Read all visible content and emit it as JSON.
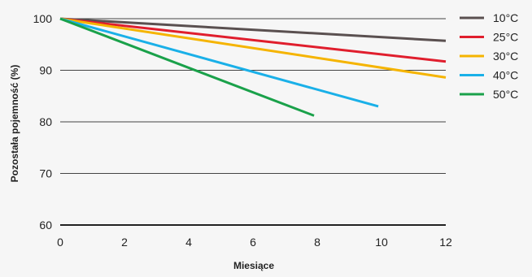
{
  "chart_data": {
    "type": "line",
    "xlabel": "Miesiące",
    "ylabel": "Pozostała pojemność (%)",
    "xlim": [
      0,
      12
    ],
    "ylim": [
      60,
      100
    ],
    "x_ticks": [
      "0",
      "2",
      "4",
      "6",
      "8",
      "10",
      "12"
    ],
    "y_ticks": [
      "60",
      "70",
      "80",
      "90",
      "100"
    ],
    "grid": "horizontal",
    "legend_position": "right",
    "series": [
      {
        "name": "10°C",
        "color": "#5a5050",
        "points": [
          [
            0,
            100
          ],
          [
            12,
            95.7
          ]
        ]
      },
      {
        "name": "25°C",
        "color": "#e01e2d",
        "points": [
          [
            0,
            100
          ],
          [
            12,
            91.7
          ]
        ]
      },
      {
        "name": "30°C",
        "color": "#f5b400",
        "points": [
          [
            0,
            100
          ],
          [
            12,
            88.6
          ]
        ]
      },
      {
        "name": "40°C",
        "color": "#1ab0e8",
        "points": [
          [
            0,
            100
          ],
          [
            9.9,
            83
          ]
        ]
      },
      {
        "name": "50°C",
        "color": "#1aa14a",
        "points": [
          [
            0,
            100
          ],
          [
            7.9,
            81.2
          ]
        ]
      }
    ]
  }
}
